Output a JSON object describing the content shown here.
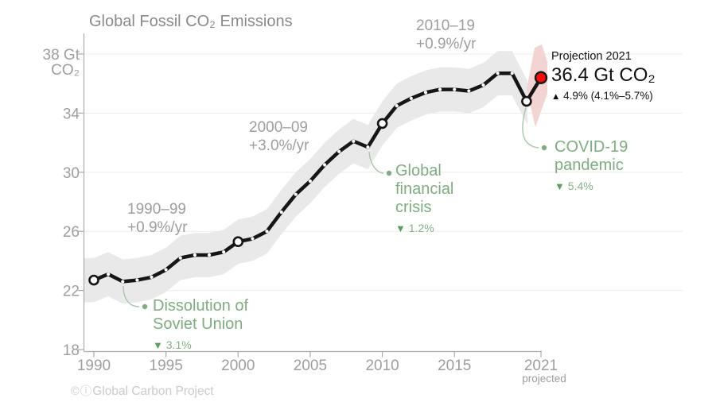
{
  "title": "Global Fossil CO₂ Emissions",
  "chart_data": {
    "type": "line",
    "title": "Global Fossil CO₂ Emissions",
    "unit": "Gt CO₂",
    "x": [
      1990,
      1991,
      1992,
      1993,
      1994,
      1995,
      1996,
      1997,
      1998,
      1999,
      2000,
      2001,
      2002,
      2003,
      2004,
      2005,
      2006,
      2007,
      2008,
      2009,
      2010,
      2011,
      2012,
      2013,
      2014,
      2015,
      2016,
      2017,
      2018,
      2019,
      2020,
      2021
    ],
    "values": [
      22.7,
      23.1,
      22.6,
      22.7,
      22.9,
      23.4,
      24.2,
      24.4,
      24.4,
      24.6,
      25.3,
      25.5,
      26.0,
      27.3,
      28.5,
      29.4,
      30.5,
      31.4,
      32.1,
      31.7,
      33.3,
      34.5,
      35.0,
      35.4,
      35.6,
      35.6,
      35.5,
      35.9,
      36.7,
      36.7,
      34.8,
      36.4
    ],
    "uncertainty_gt": 1.5,
    "ylim": [
      18,
      38
    ],
    "yticks": [
      18,
      22,
      26,
      30,
      34,
      38
    ],
    "ytick_top_lines": [
      "38 Gt",
      "CO₂"
    ],
    "xticks": [
      1990,
      1995,
      2000,
      2005,
      2010,
      2015,
      2021
    ],
    "xtick_suffix_label": "projected",
    "open_circle_years": [
      1990,
      2000,
      2010,
      2020
    ],
    "projection_year": 2021,
    "projection_value": 36.4,
    "grid": true,
    "legend": "none"
  },
  "annotations": {
    "periods": [
      {
        "range": "1990–99",
        "rate": "+0.9%/yr"
      },
      {
        "range": "2000–09",
        "rate": "+3.0%/yr"
      },
      {
        "range": "2010–19",
        "rate": "+0.9%/yr"
      }
    ],
    "events": [
      {
        "lines": [
          "Dissolution of",
          "Soviet Union"
        ],
        "change": "3.1%"
      },
      {
        "lines": [
          "Global",
          "financial",
          "crisis"
        ],
        "change": "1.2%"
      },
      {
        "lines": [
          "COVID-19",
          "pandemic"
        ],
        "change": "5.4%"
      }
    ],
    "projection": {
      "label": "Projection 2021",
      "value": "36.4 Gt CO₂",
      "change": "4.9% (4.1%–5.7%)"
    }
  },
  "footer": {
    "attribution": "Global Carbon Project"
  },
  "colors": {
    "line": "#161616",
    "band": "#e9e9e9",
    "projection_fan": "#f2d4d2",
    "projection_dot": "#f30d0d",
    "green_annotation": "#7fad81",
    "gray_annotation": "#9e9e9e",
    "axis": "#ababab",
    "tick_label": "#9e9e9e",
    "gridline": "#ececec"
  }
}
